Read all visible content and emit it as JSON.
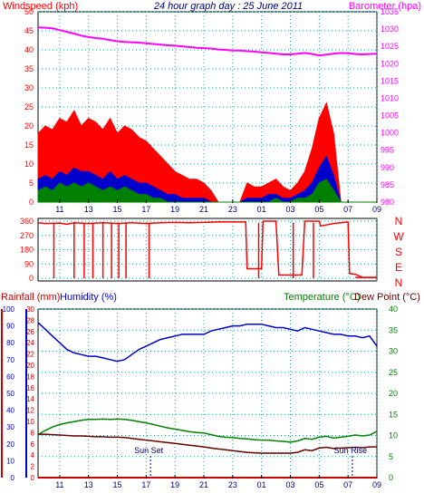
{
  "chart_data": [
    {
      "type": "line",
      "title": "24 hour graph day : 25 June 2011",
      "left_axis_label": "Windspeed (kph)",
      "right_axis_label": "Barometer (hpa)",
      "x_ticks": [
        "11",
        "13",
        "15",
        "17",
        "19",
        "21",
        "23",
        "01",
        "03",
        "05",
        "07",
        "09"
      ],
      "y_left_ticks": [
        "0",
        "5",
        "10",
        "15",
        "20",
        "25",
        "30",
        "35",
        "40",
        "45",
        "50"
      ],
      "y_left_range": [
        0,
        50
      ],
      "y_right_ticks": [
        "980",
        "985",
        "990",
        "995",
        "1000",
        "1005",
        "1010",
        "1015",
        "1020",
        "1025",
        "1030",
        "1035"
      ],
      "y_right_range": [
        980,
        1035
      ],
      "grid": true,
      "hours": [
        9.5,
        10,
        10.5,
        11,
        11.5,
        12,
        12.5,
        13,
        13.5,
        14,
        14.5,
        15,
        15.5,
        16,
        16.5,
        17,
        17.5,
        18,
        18.5,
        19,
        19.5,
        20,
        20.5,
        21,
        21.5,
        22,
        22.5,
        23,
        23.5,
        24,
        24.5,
        25,
        25.5,
        26,
        26.5,
        27,
        27.5,
        28,
        28.5,
        29,
        29.5,
        30,
        30.5,
        31,
        31.5,
        32,
        32.5,
        33
      ],
      "series": [
        {
          "key": "gust",
          "color": "#ff0000",
          "values": [
            18,
            20,
            19,
            22,
            21,
            24,
            20,
            22,
            21,
            19,
            22,
            18,
            20,
            19,
            17,
            16,
            14,
            12,
            10,
            8,
            7,
            6,
            6,
            5,
            3,
            0,
            0,
            0,
            0,
            5,
            4,
            4,
            5,
            6,
            4,
            3,
            5,
            8,
            14,
            22,
            26,
            18,
            0,
            0,
            0,
            0,
            0,
            0
          ]
        },
        {
          "key": "speed",
          "color": "#0000cc",
          "values": [
            6,
            7,
            6,
            8,
            7,
            9,
            8,
            8,
            7,
            6,
            8,
            6,
            7,
            6,
            5,
            5,
            4,
            3,
            2,
            2,
            1,
            1,
            1,
            1,
            0,
            0,
            0,
            0,
            0,
            1,
            1,
            1,
            2,
            2,
            1,
            1,
            2,
            3,
            5,
            9,
            12,
            7,
            0,
            0,
            0,
            0,
            0,
            0
          ]
        },
        {
          "key": "average",
          "color": "#008000",
          "values": [
            3,
            4,
            3,
            5,
            4,
            5,
            4,
            5,
            4,
            3,
            4,
            3,
            4,
            3,
            2,
            2,
            1,
            1,
            0,
            0,
            0,
            0,
            0,
            0,
            0,
            0,
            0,
            0,
            0,
            0,
            0,
            0,
            0,
            1,
            0,
            0,
            1,
            1,
            2,
            5,
            6,
            3,
            0,
            0,
            0,
            0,
            0,
            0
          ]
        },
        {
          "key": "barometer",
          "color": "#ff00ff",
          "axis": "right",
          "values": [
            1030.5,
            1030.4,
            1030.2,
            1029.7,
            1029.2,
            1028.7,
            1028.1,
            1027.7,
            1027.4,
            1027.2,
            1026.8,
            1026.5,
            1026.3,
            1026.2,
            1026.1,
            1025.9,
            1025.7,
            1025.5,
            1025.3,
            1025.2,
            1025.0,
            1024.8,
            1024.6,
            1024.5,
            1024.4,
            1024.1,
            1024.0,
            1023.8,
            1023.8,
            1023.6,
            1023.5,
            1023.3,
            1023.1,
            1022.9,
            1022.7,
            1022.7,
            1022.9,
            1023.1,
            1022.8,
            1022.4,
            1022.6,
            1022.9,
            1023.1,
            1023.0,
            1022.8,
            1022.7,
            1022.8,
            1022.9
          ]
        }
      ]
    },
    {
      "type": "line",
      "x_ticks": [
        "11",
        "13",
        "15",
        "17",
        "19",
        "21",
        "23",
        "01",
        "03",
        "05",
        "07",
        "09"
      ],
      "y_left_ticks": [
        "0",
        "90",
        "180",
        "270",
        "360"
      ],
      "y_left_range": [
        0,
        360
      ],
      "y_right_labels": [
        "N",
        "W",
        "S",
        "E",
        "N"
      ],
      "grid": true,
      "series": [
        {
          "key": "direction",
          "color": "#ff0000",
          "points": [
            [
              9.5,
              350
            ],
            [
              10,
              345
            ],
            [
              11,
              348
            ],
            [
              11.5,
              340
            ],
            [
              12,
              350
            ],
            [
              13,
              345
            ],
            [
              14,
              350
            ],
            [
              15,
              345
            ],
            [
              16,
              350
            ],
            [
              17,
              345
            ],
            [
              18,
              350
            ],
            [
              19,
              352
            ],
            [
              20,
              350
            ],
            [
              21,
              352
            ],
            [
              22,
              355
            ],
            [
              23,
              355
            ],
            [
              23.9,
              355
            ],
            [
              24,
              60
            ],
            [
              25,
              60
            ],
            [
              25.1,
              360
            ],
            [
              26,
              360
            ],
            [
              26.2,
              20
            ],
            [
              27.8,
              20
            ],
            [
              28,
              360
            ],
            [
              29,
              360
            ],
            [
              29.1,
              330
            ],
            [
              30,
              345
            ],
            [
              30.5,
              350
            ],
            [
              31,
              355
            ],
            [
              31.1,
              30
            ],
            [
              31.5,
              25
            ],
            [
              32,
              5
            ],
            [
              33,
              5
            ]
          ]
        },
        {
          "key": "dropouts",
          "color": "#ff0000",
          "x": [
            10.6,
            12,
            12.7,
            13.3,
            14,
            14.6,
            15.1,
            15.6,
            17.2,
            24.8,
            27.2,
            28.6
          ]
        }
      ]
    },
    {
      "type": "line",
      "left_label_1": "Rainfall (mm)",
      "left_label_2": "Humidity (%)",
      "right_label_1": "Temperature (°C)",
      "right_label_2": "Dew Point (°C)",
      "x_ticks": [
        "11",
        "13",
        "15",
        "17",
        "19",
        "21",
        "23",
        "01",
        "03",
        "05",
        "07",
        "09"
      ],
      "humidity_ticks": [
        "0",
        "10",
        "20",
        "30",
        "40",
        "50",
        "60",
        "70",
        "80",
        "90",
        "100"
      ],
      "humidity_range": [
        0,
        100
      ],
      "rain_ticks": [
        "0",
        "2",
        "4",
        "6",
        "8",
        "10",
        "12",
        "14",
        "16",
        "18",
        "20",
        "22",
        "24",
        "26",
        "28",
        "30"
      ],
      "rain_range": [
        0,
        30
      ],
      "temp_ticks": [
        "0",
        "5",
        "10",
        "15",
        "20",
        "25",
        "30",
        "35",
        "40"
      ],
      "temp_range": [
        0,
        40
      ],
      "annotations": [
        {
          "text": "Sun Set",
          "hour": 17.3
        },
        {
          "text": "Sun Rise",
          "hour": 31.3
        }
      ],
      "grid": true,
      "hours": [
        9.5,
        10,
        10.5,
        11,
        11.5,
        12,
        12.5,
        13,
        13.5,
        14,
        14.5,
        15,
        15.5,
        16,
        16.5,
        17,
        17.5,
        18,
        18.5,
        19,
        19.5,
        20,
        20.5,
        21,
        21.5,
        22,
        22.5,
        23,
        23.5,
        24,
        24.5,
        25,
        25.5,
        26,
        26.5,
        27,
        27.5,
        28,
        28.5,
        29,
        29.5,
        30,
        30.5,
        31,
        31.5,
        32,
        32.5,
        33
      ],
      "series": [
        {
          "key": "humidity",
          "color": "#0000cc",
          "axis": "humidity",
          "values": [
            92,
            88,
            84,
            80,
            76,
            74,
            73,
            72,
            72,
            71,
            70,
            69,
            70,
            73,
            76,
            78,
            80,
            82,
            83,
            84,
            85,
            85,
            85,
            85,
            87,
            88,
            89,
            90,
            90,
            91,
            91,
            91,
            90,
            89,
            89,
            88,
            87,
            89,
            88,
            87,
            86,
            85,
            85,
            84,
            84,
            83,
            84,
            78
          ]
        },
        {
          "key": "temperature",
          "color": "#008000",
          "axis": "temp",
          "values": [
            10.2,
            11.2,
            12.0,
            12.6,
            13.0,
            13.3,
            13.6,
            13.8,
            13.8,
            13.9,
            13.8,
            13.9,
            13.8,
            13.6,
            13.3,
            13.0,
            12.6,
            12.2,
            11.8,
            11.5,
            11.2,
            10.9,
            10.7,
            10.6,
            10.2,
            9.8,
            9.6,
            9.5,
            9.3,
            9.2,
            9.0,
            8.9,
            8.9,
            8.7,
            8.6,
            8.4,
            8.7,
            9.3,
            9.1,
            9.6,
            9.8,
            9.4,
            9.6,
            9.8,
            10.1,
            9.9,
            10.1,
            11.0
          ]
        },
        {
          "key": "dewpoint",
          "color": "#660000",
          "axis": "temp",
          "values": [
            10.3,
            10.3,
            10.2,
            10.1,
            10.0,
            9.9,
            9.9,
            9.8,
            9.7,
            9.7,
            9.6,
            9.6,
            9.5,
            9.3,
            9.1,
            8.9,
            8.7,
            8.5,
            8.3,
            8.1,
            7.9,
            7.7,
            7.5,
            7.3,
            7.0,
            6.8,
            6.6,
            6.4,
            6.2,
            6.0,
            5.9,
            5.8,
            5.8,
            5.8,
            5.8,
            5.8,
            6.0,
            6.6,
            6.4,
            7.0,
            7.2,
            6.9,
            7.0,
            7.1,
            7.2,
            7.1,
            7.3,
            7.3
          ]
        },
        {
          "key": "rainfall",
          "color": "#cc0000",
          "axis": "rain",
          "values": [
            0,
            0,
            0,
            0,
            0,
            0,
            0,
            0,
            0,
            0,
            0,
            0,
            0,
            0,
            0,
            0,
            0,
            0,
            0,
            0,
            0,
            0,
            0,
            0,
            0,
            0,
            0,
            0,
            0,
            0,
            0,
            0,
            0,
            0,
            0,
            0,
            0,
            0,
            0,
            0,
            0,
            0,
            0,
            0,
            0,
            0,
            0,
            0
          ]
        }
      ]
    }
  ]
}
